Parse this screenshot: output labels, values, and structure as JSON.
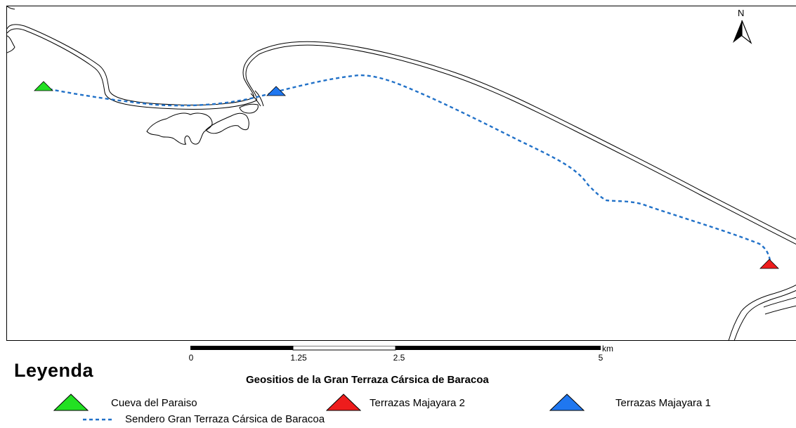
{
  "map": {
    "north_label": "N",
    "scale": {
      "unit": "km",
      "ticks": [
        "0",
        "1.25",
        "2.5",
        "5"
      ]
    },
    "sites": [
      {
        "name": "Cueva del Paraiso",
        "color": "#22e022"
      },
      {
        "name": "Terrazas Majayara 1",
        "color": "#1f77f0"
      },
      {
        "name": "Terrazas Majayara 2",
        "color": "#ee1c1c"
      }
    ],
    "trail_color": "#2171c8",
    "coast_color": "#000000"
  },
  "legend": {
    "title": "Leyenda",
    "subtitle": "Geositios de la Gran Terraza Cársica de Baracoa",
    "items": [
      {
        "label": "Cueva del Paraiso",
        "symbol": "triangle",
        "color": "#22e022"
      },
      {
        "label": "Terrazas Majayara 2",
        "symbol": "triangle",
        "color": "#ee1c1c"
      },
      {
        "label": "Terrazas Majayara 1",
        "symbol": "triangle",
        "color": "#1f77f0"
      },
      {
        "label": "Sendero Gran Terraza Cársica de Baracoa",
        "symbol": "dashed-line",
        "color": "#2171c8"
      }
    ]
  }
}
